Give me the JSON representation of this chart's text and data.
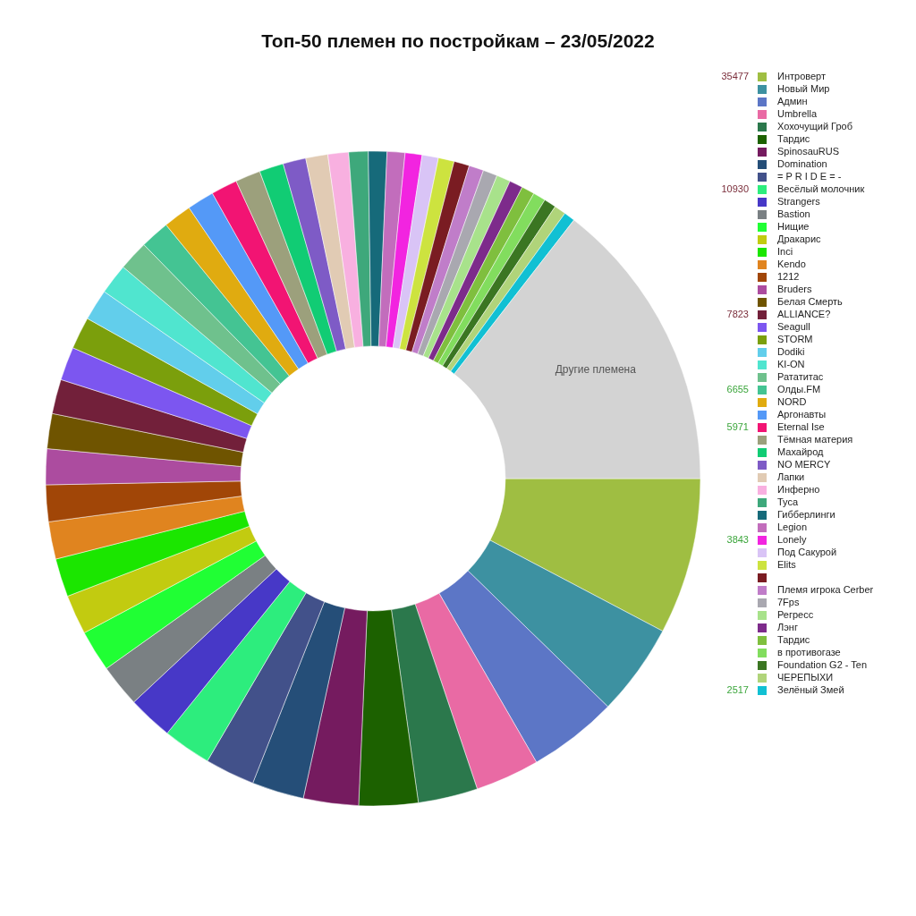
{
  "chart_data": {
    "type": "donut",
    "title": "Топ-50 племен по постройкам – 23/05/2022",
    "categories": [
      "Интроверт",
      "Новый Мир",
      "Админ",
      "Umbrella",
      "Хохочущий Гроб",
      "Тардис",
      "SpinosauRUS",
      "Domination",
      "= P R I D E = -",
      "Весёлый молочник",
      "Strangers",
      "Bastion",
      "Нищие",
      "Дракарис",
      "Inci",
      "Kendo",
      "1212",
      "Bruders",
      "Белая Смерть",
      "ALLIANCE?",
      "Seagull",
      "STORM",
      "Dodiki",
      "KI-ON",
      "Рататитас",
      "Олды.FM",
      "NORD",
      "Аргонавты",
      "Eternal Ise",
      "Тёмная материя",
      "Махайрод",
      "NO MERCY",
      "Лапки",
      "Инферно",
      "Туса",
      "Гибберлинги",
      "Legion",
      "Lonely",
      "Под Сакурой",
      "Elits",
      null,
      "Племя игрока Cerber",
      "7Fps",
      "Регресс",
      "Лэнг",
      "Тардис",
      "в противогазе",
      "Foundation G2 - Ten",
      "ЧЕРЕПЫХИ",
      "Зелёный Змей",
      null
    ],
    "values": [
      35477,
      20930,
      20290,
      14550,
      13530,
      13400,
      12500,
      11800,
      11300,
      10930,
      10200,
      9700,
      9400,
      9000,
      8700,
      8500,
      8300,
      8100,
      7950,
      7823,
      7600,
      7300,
      7100,
      6950,
      6800,
      6655,
      6400,
      6150,
      5971,
      5700,
      5500,
      5200,
      5000,
      4700,
      4400,
      4200,
      4050,
      3843,
      3700,
      3600,
      3500,
      3350,
      3250,
      3150,
      3050,
      2950,
      2850,
      2750,
      2650,
      2517,
      66600
    ],
    "value_labels": [
      "35477",
      null,
      null,
      null,
      null,
      null,
      null,
      null,
      null,
      "10930",
      null,
      null,
      null,
      null,
      null,
      null,
      null,
      null,
      null,
      "7823",
      null,
      null,
      null,
      null,
      null,
      "6655",
      null,
      null,
      "5971",
      null,
      null,
      null,
      null,
      null,
      null,
      null,
      null,
      "3843",
      null,
      null,
      null,
      null,
      null,
      null,
      null,
      null,
      null,
      null,
      null,
      "2517",
      null
    ],
    "colors": [
      "#9fbe42",
      "#3d91a1",
      "#5c76c6",
      "#e96aa4",
      "#2b784c",
      "#1c6100",
      "#751b5f",
      "#254e78",
      "#42518a",
      "#2ded7d",
      "#4738c7",
      "#7a8083",
      "#20ff34",
      "#c2cb10",
      "#1be600",
      "#e0841f",
      "#a14607",
      "#ac4c9f",
      "#6f5400",
      "#72203a",
      "#7c56f0",
      "#7b9f0c",
      "#62ceeb",
      "#50e5cf",
      "#6fc18d",
      "#44c493",
      "#e0ab10",
      "#5499f7",
      "#f21473",
      "#9ca07c",
      "#11cc74",
      "#7e5bc6",
      "#e1cbb4",
      "#f8b0e0",
      "#3ea87b",
      "#166a7a",
      "#c26dbc",
      "#f224e0",
      "#d9c4f6",
      "#cde33f",
      "#7a1c22",
      "#c07dc9",
      "#a9a8b0",
      "#a8e28b",
      "#7d2b8b",
      "#7fbf3e",
      "#82dd5e",
      "#3b7622",
      "#b0d47a",
      "#11c0d3",
      "#d3d3d3"
    ],
    "annotations": [
      "Другие племена"
    ],
    "legend": "right"
  }
}
